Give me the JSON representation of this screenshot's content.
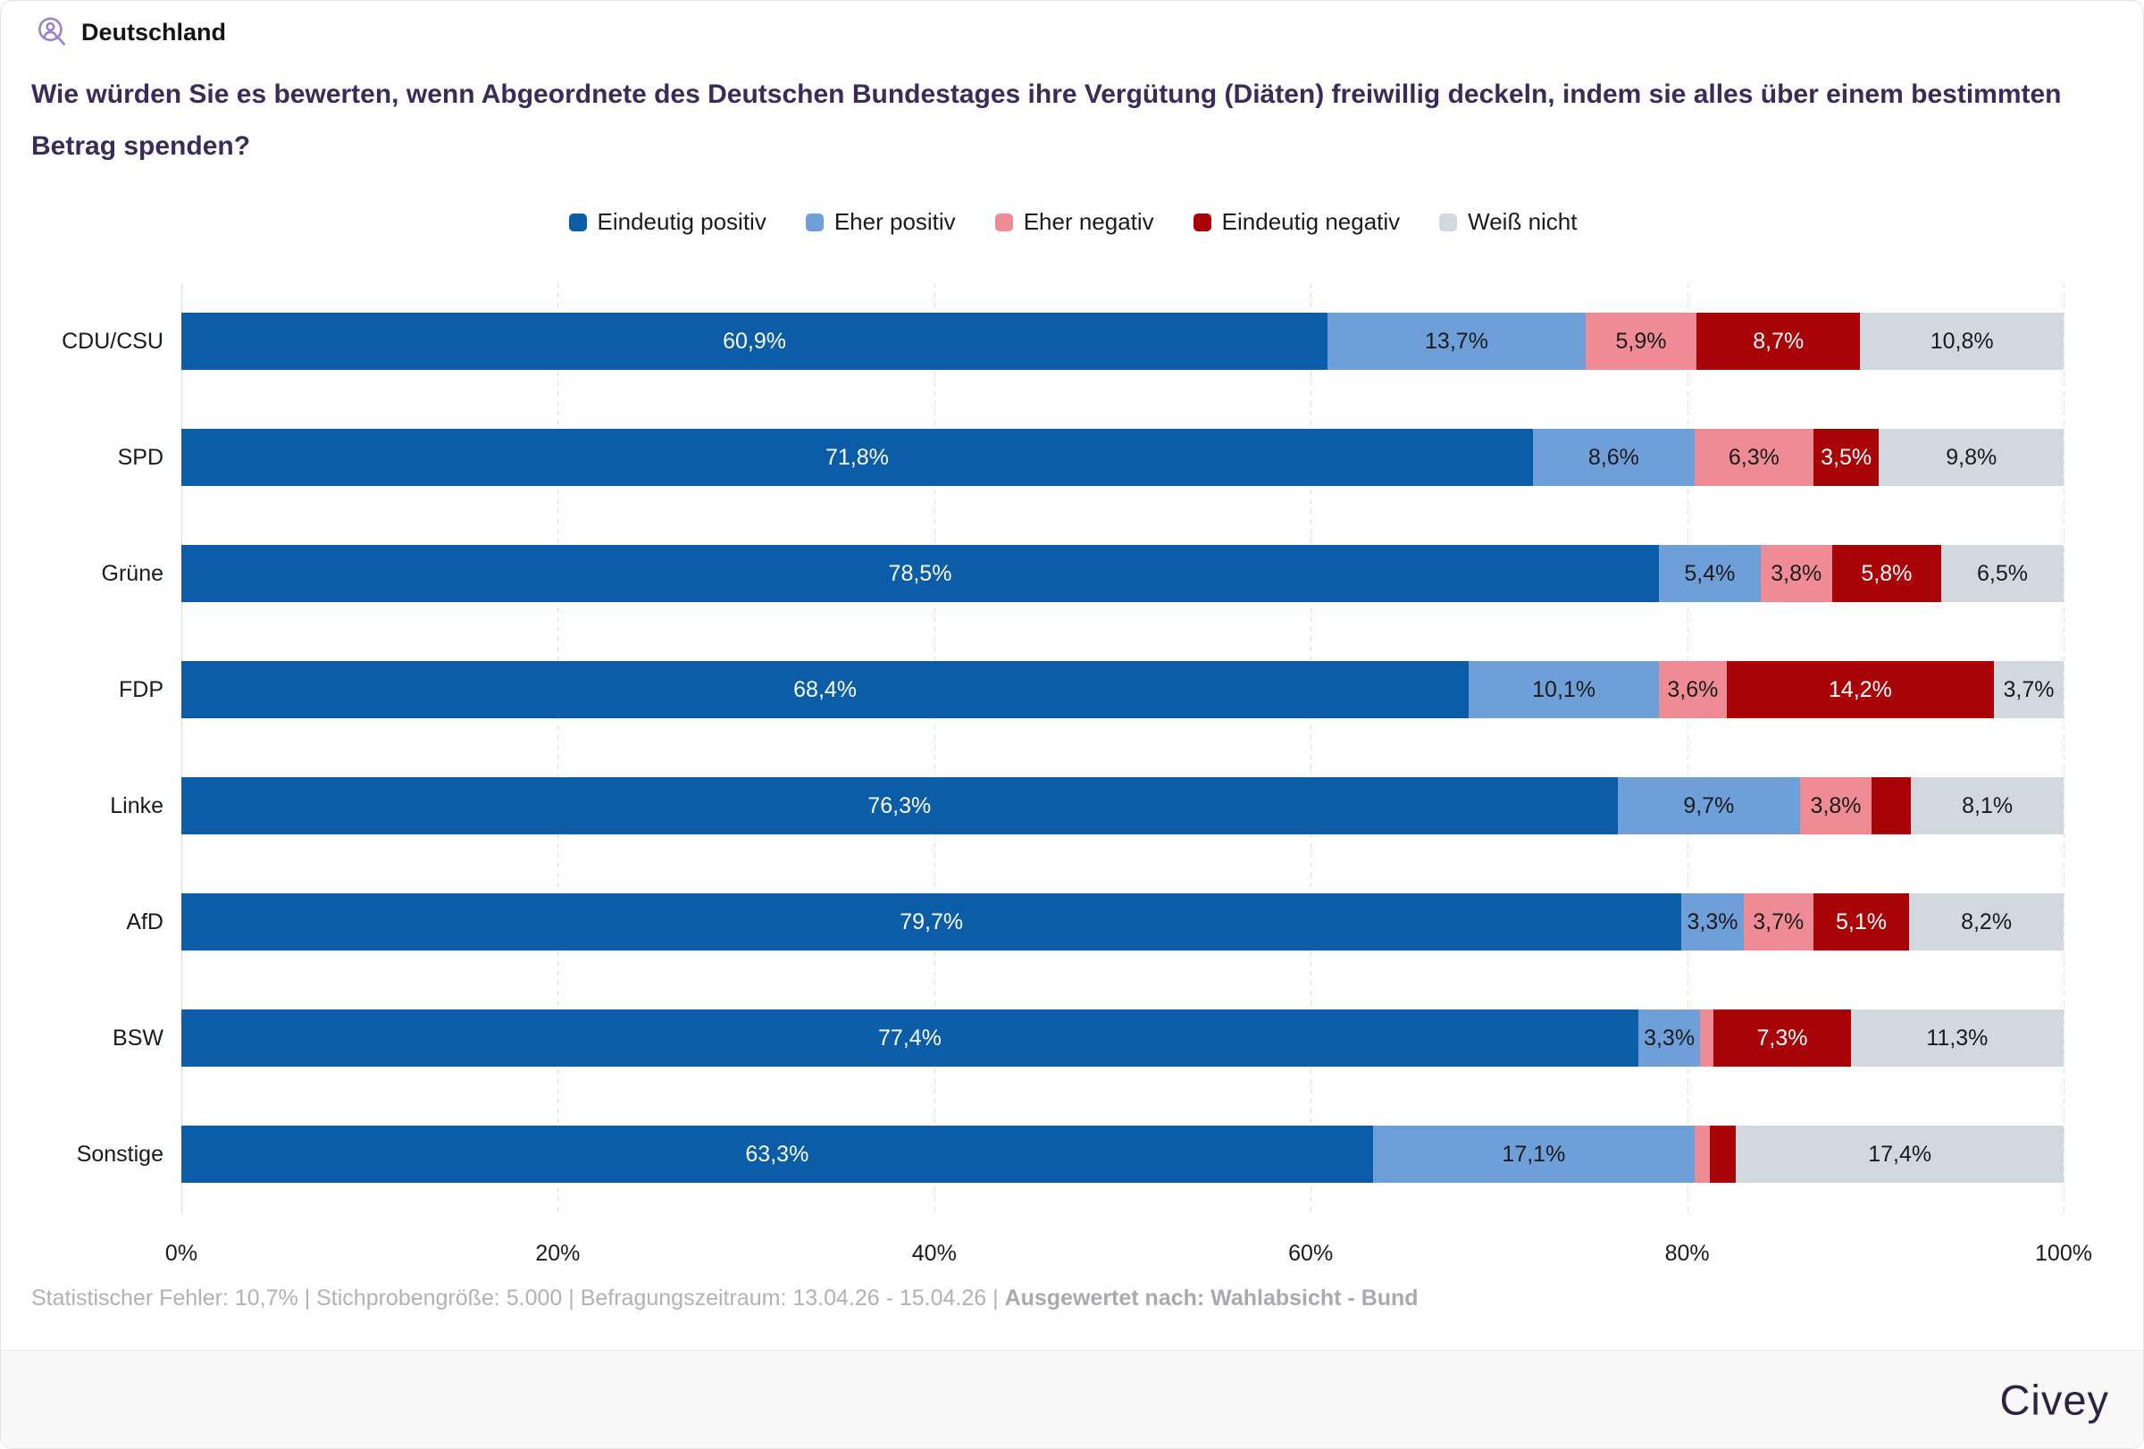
{
  "header": {
    "region_label": "Deutschland",
    "title": "Wie würden Sie es bewerten, wenn Abgeordnete des Deutschen Bundestages ihre Vergütung (Diäten) freiwillig deckeln, indem sie alles über einem bestimmten Betrag spenden?"
  },
  "legend": {
    "items": [
      {
        "label": "Eindeutig positiv",
        "color": "#0a5da6"
      },
      {
        "label": "Eher positiv",
        "color": "#6f9fd8"
      },
      {
        "label": "Eher negativ",
        "color": "#ee8b94"
      },
      {
        "label": "Eindeutig negativ",
        "color": "#a90509"
      },
      {
        "label": "Weiß nicht",
        "color": "#d2d8e0"
      }
    ]
  },
  "chart_data": {
    "type": "bar",
    "stacked": true,
    "orientation": "horizontal",
    "value_format": "percent_german_comma",
    "label_threshold": 3,
    "categories": [
      "CDU/CSU",
      "SPD",
      "Grüne",
      "FDP",
      "Linke",
      "AfD",
      "BSW",
      "Sonstige"
    ],
    "series": [
      {
        "name": "Eindeutig positiv",
        "color": "#0a5da6",
        "text_color": "#ffffff",
        "values": [
          60.9,
          71.8,
          78.5,
          68.4,
          76.3,
          79.7,
          77.4,
          63.3
        ]
      },
      {
        "name": "Eher positiv",
        "color": "#6f9fd8",
        "text_color": "#1a1a1a",
        "values": [
          13.7,
          8.6,
          5.4,
          10.1,
          9.7,
          3.3,
          3.3,
          17.1
        ]
      },
      {
        "name": "Eher negativ",
        "color": "#ee8b94",
        "text_color": "#1a1a1a",
        "values": [
          5.9,
          6.3,
          3.8,
          3.6,
          3.8,
          3.7,
          0.7,
          0.8
        ]
      },
      {
        "name": "Eindeutig negativ",
        "color": "#a90509",
        "text_color": "#ffffff",
        "values": [
          8.7,
          3.5,
          5.8,
          14.2,
          2.1,
          5.1,
          7.3,
          1.4
        ]
      },
      {
        "name": "Weiß nicht",
        "color": "#d2d8e0",
        "text_color": "#1a1a1a",
        "values": [
          10.8,
          9.8,
          6.5,
          3.7,
          8.1,
          8.2,
          11.3,
          17.4
        ]
      }
    ],
    "xlim": [
      0,
      100
    ],
    "x_ticks": [
      "0%",
      "20%",
      "40%",
      "60%",
      "80%",
      "100%"
    ],
    "grid": "vertical-dashed",
    "legend_position": "top-center"
  },
  "footer": {
    "note_regular": "Statistischer Fehler: 10,7% | Stichprobengröße: 5.000 | Befragungszeitraum: 13.04.26 - 15.04.26 | ",
    "note_bold": "Ausgewertet nach: Wahlabsicht - Bund"
  },
  "brand": {
    "logo_text": "Civey",
    "accent_purple": "#9b84cf",
    "logo_color": "#2e2343"
  }
}
